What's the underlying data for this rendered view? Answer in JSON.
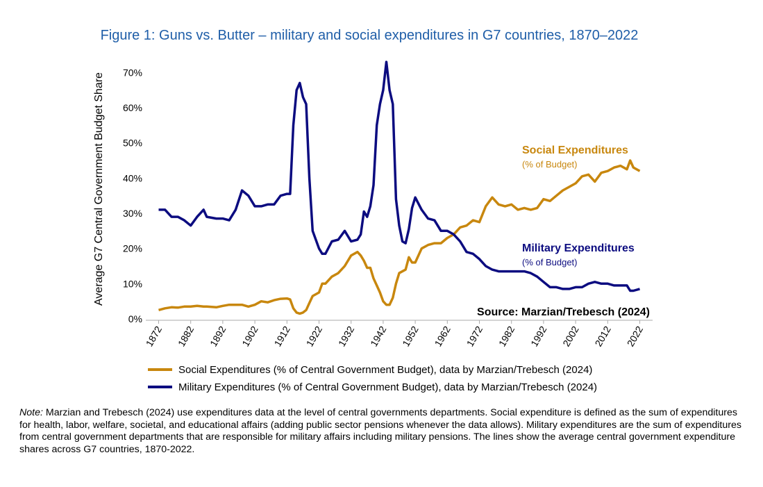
{
  "chart_data": {
    "type": "line",
    "title": "Figure 1: Guns vs. Butter – military and social expenditures in G7 countries, 1870–2022",
    "y_label": "Average G7 Central Government Budget Share",
    "x": [
      1872,
      1874,
      1876,
      1878,
      1880,
      1882,
      1884,
      1886,
      1887,
      1890,
      1892,
      1894,
      1896,
      1898,
      1900,
      1902,
      1904,
      1906,
      1908,
      1910,
      1912,
      1913,
      1914,
      1915,
      1916,
      1917,
      1918,
      1919,
      1920,
      1922,
      1923,
      1924,
      1926,
      1928,
      1930,
      1932,
      1934,
      1935,
      1936,
      1937,
      1938,
      1939,
      1940,
      1941,
      1942,
      1943,
      1944,
      1945,
      1946,
      1947,
      1948,
      1949,
      1950,
      1951,
      1952,
      1954,
      1956,
      1958,
      1960,
      1962,
      1964,
      1966,
      1968,
      1970,
      1972,
      1974,
      1976,
      1978,
      1980,
      1982,
      1984,
      1986,
      1988,
      1990,
      1992,
      1994,
      1996,
      1998,
      2000,
      2002,
      2004,
      2006,
      2008,
      2010,
      2012,
      2014,
      2016,
      2018,
      2019,
      2020,
      2022
    ],
    "series": [
      {
        "name": "Social Expenditures (% of Central Government Budget), data by Marzian/Trebesch (2024)",
        "color": "#c8870e",
        "values": [
          2.5,
          3,
          3.3,
          3.2,
          3.5,
          3.5,
          3.7,
          3.5,
          3.5,
          3.3,
          3.7,
          4,
          4,
          4,
          3.5,
          4,
          5,
          4.7,
          5.3,
          5.7,
          5.8,
          5.5,
          3,
          1.8,
          1.5,
          1.8,
          2.5,
          4.5,
          6.5,
          7.5,
          10,
          10,
          12,
          13,
          15,
          18,
          19,
          18,
          16.5,
          14.5,
          14.5,
          11.5,
          9.5,
          7.5,
          5,
          4,
          4,
          6,
          10,
          13,
          13.5,
          14,
          17.5,
          16,
          16,
          20,
          21,
          21.5,
          21.5,
          23,
          24,
          26,
          26.5,
          28,
          27.5,
          32,
          34.5,
          32.5,
          32,
          32.5,
          31,
          31.5,
          31,
          31.5,
          34,
          33.5,
          35,
          36.5,
          37.5,
          38.5,
          40.5,
          41,
          39,
          41.5,
          42,
          43,
          43.5,
          42.5,
          45,
          43,
          42
        ]
      },
      {
        "name": "Military Expenditures (% of Central Government Budget), data by Marzian/Trebesch (2024)",
        "color": "#0c0c80",
        "values": [
          31,
          31,
          29,
          29,
          28,
          26.5,
          29,
          31,
          29,
          28.5,
          28.5,
          28,
          31,
          36.5,
          35,
          32,
          32,
          32.5,
          32.5,
          35,
          35.5,
          35.5,
          55,
          65,
          67,
          63,
          61,
          40,
          25,
          20,
          18.5,
          18.5,
          22,
          22.5,
          25,
          22,
          22.5,
          24,
          30.5,
          29,
          32,
          38,
          55,
          61,
          65,
          73,
          65,
          61,
          34,
          26.5,
          22,
          21.5,
          25.5,
          31.5,
          34.5,
          31,
          28.5,
          28,
          25,
          25,
          24,
          22,
          19,
          18.5,
          17,
          15,
          14,
          13.5,
          13.5,
          13.5,
          13.5,
          13.5,
          13,
          12,
          10.5,
          9,
          9,
          8.5,
          8.5,
          9,
          9,
          10,
          10.5,
          10,
          10,
          9.5,
          9.5,
          9.5,
          8,
          8,
          8.5
        ]
      }
    ],
    "annotations": [
      {
        "title": "Social Expenditures",
        "subtitle": "(% of Budget)",
        "color": "#c8870e"
      },
      {
        "title": "Military Expenditures",
        "subtitle": "(% of Budget)",
        "color": "#0c0c80"
      }
    ],
    "source": "Source: Marzian/Trebesch (2024)",
    "xlim": [
      1868,
      2026
    ],
    "xticks": [
      1872,
      1882,
      1892,
      1902,
      1912,
      1922,
      1932,
      1942,
      1952,
      1962,
      1972,
      1982,
      1992,
      2002,
      2012,
      2022
    ],
    "ylim": [
      0,
      75
    ],
    "yticks": [
      {
        "value": 0,
        "label": "0%"
      },
      {
        "value": 10,
        "label": "10%"
      },
      {
        "value": 20,
        "label": "20%"
      },
      {
        "value": 30,
        "label": "30%"
      },
      {
        "value": 40,
        "label": "40%"
      },
      {
        "value": 50,
        "label": "50%"
      },
      {
        "value": 60,
        "label": "60%"
      },
      {
        "value": 70,
        "label": "70%"
      }
    ],
    "note": {
      "label": "Note:",
      "text": "Marzian and Trebesch (2024) use expenditures data at the level of central governments departments. Social expenditure is defined as the sum of expenditures for health, labor, welfare, societal, and educational affairs (adding public sector pensions whenever the data allows). Military expenditures are the sum of expenditures from central government departments that are responsible for military affairs including military pensions. The lines show the average central government expenditure shares across G7 countries, 1870-2022."
    }
  }
}
